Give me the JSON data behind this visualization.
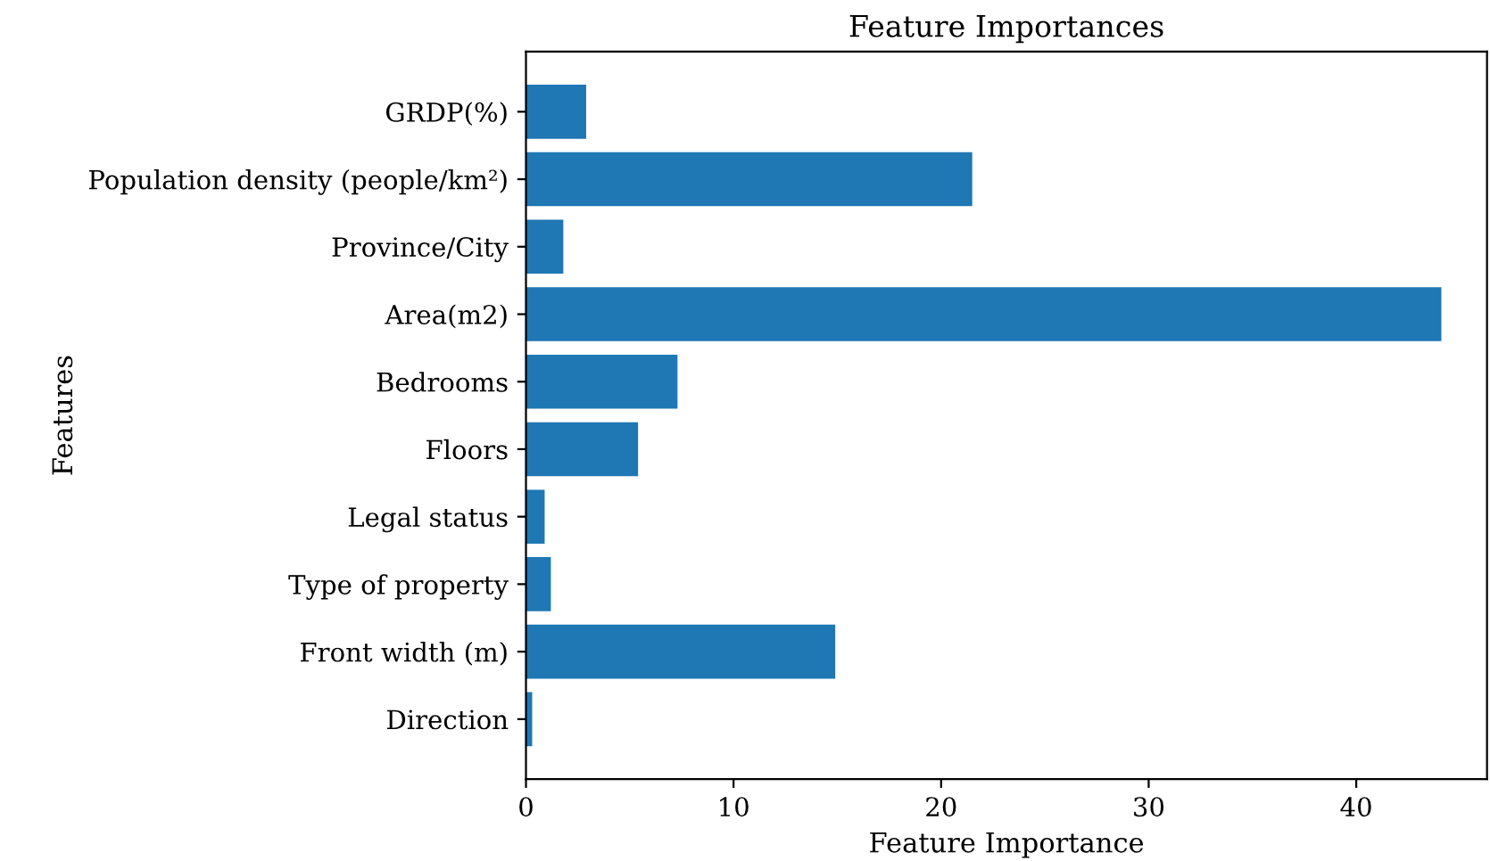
{
  "chart_data": {
    "type": "bar",
    "orientation": "horizontal",
    "title": "Feature Importances",
    "xlabel": "Feature Importance",
    "ylabel": "Features",
    "categories": [
      "GRDP(%)",
      "Population density (people/km²)",
      "Province/City",
      "Area(m2)",
      "Bedrooms",
      "Floors",
      "Legal status",
      "Type of property",
      "Front width (m)",
      "Direction"
    ],
    "values": [
      2.9,
      21.5,
      1.8,
      44.1,
      7.3,
      5.4,
      0.9,
      1.2,
      14.9,
      0.3
    ],
    "color": "#1f77b4",
    "xlim": [
      0,
      46.3
    ],
    "xticks": [
      0,
      10,
      20,
      30,
      40
    ],
    "grid": false,
    "legend": false
  }
}
